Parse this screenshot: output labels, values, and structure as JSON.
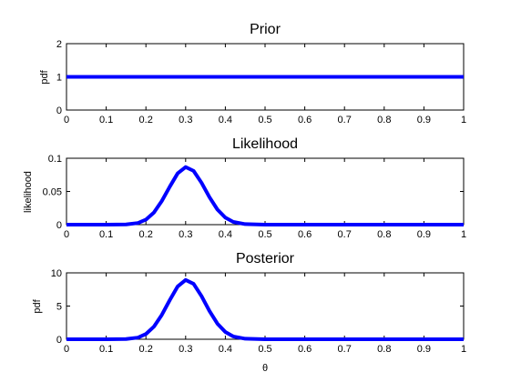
{
  "figure": {
    "background": "#ffffff",
    "xlabel": "θ"
  },
  "chart_data": [
    {
      "type": "line",
      "title": "Prior",
      "xlabel": "",
      "ylabel": "pdf",
      "xlim": [
        0,
        1
      ],
      "ylim": [
        0,
        2
      ],
      "xticks": [
        "0",
        "0.1",
        "0.2",
        "0.3",
        "0.4",
        "0.5",
        "0.6",
        "0.7",
        "0.8",
        "0.9",
        "1"
      ],
      "yticks": [
        "0",
        "1",
        "2"
      ],
      "series": [
        {
          "color": "#0000ff",
          "x": [
            0.0,
            0.1,
            0.2,
            0.3,
            0.4,
            0.5,
            0.6,
            0.7,
            0.8,
            0.9,
            1.0
          ],
          "y": [
            1,
            1,
            1,
            1,
            1,
            1,
            1,
            1,
            1,
            1,
            1
          ]
        }
      ],
      "grid": false
    },
    {
      "type": "line",
      "title": "Likelihood",
      "xlabel": "",
      "ylabel": "likelihood",
      "xlim": [
        0,
        1
      ],
      "ylim": [
        0,
        0.1
      ],
      "xticks": [
        "0",
        "0.1",
        "0.2",
        "0.3",
        "0.4",
        "0.5",
        "0.6",
        "0.7",
        "0.8",
        "0.9",
        "1"
      ],
      "yticks": [
        "0",
        "0.05",
        "0.1"
      ],
      "series": [
        {
          "color": "#0000ff",
          "x": [
            0.0,
            0.1,
            0.15,
            0.18,
            0.2,
            0.22,
            0.24,
            0.26,
            0.28,
            0.3,
            0.32,
            0.34,
            0.36,
            0.38,
            0.4,
            0.42,
            0.45,
            0.5,
            0.6,
            1.0
          ],
          "y": [
            0.0,
            0.0,
            0.0003,
            0.0025,
            0.0076,
            0.0182,
            0.0356,
            0.0571,
            0.0773,
            0.0867,
            0.081,
            0.0631,
            0.0413,
            0.0228,
            0.0106,
            0.0041,
            0.0008,
            0.0,
            0.0,
            0.0
          ]
        }
      ],
      "grid": false
    },
    {
      "type": "line",
      "title": "Posterior",
      "xlabel": "θ",
      "ylabel": "pdf",
      "xlim": [
        0,
        1
      ],
      "ylim": [
        0,
        10
      ],
      "xticks": [
        "0",
        "0.1",
        "0.2",
        "0.3",
        "0.4",
        "0.5",
        "0.6",
        "0.7",
        "0.8",
        "0.9",
        "1"
      ],
      "yticks": [
        "0",
        "5",
        "10"
      ],
      "series": [
        {
          "color": "#0000ff",
          "x": [
            0.0,
            0.1,
            0.15,
            0.18,
            0.2,
            0.22,
            0.24,
            0.26,
            0.28,
            0.3,
            0.32,
            0.34,
            0.36,
            0.38,
            0.4,
            0.42,
            0.45,
            0.5,
            0.6,
            1.0
          ],
          "y": [
            0.0,
            0.0,
            0.03,
            0.25,
            0.79,
            1.89,
            3.67,
            5.89,
            7.96,
            8.93,
            8.35,
            6.5,
            4.26,
            2.35,
            1.09,
            0.42,
            0.08,
            0.0,
            0.0,
            0.0
          ]
        }
      ],
      "grid": false
    }
  ]
}
